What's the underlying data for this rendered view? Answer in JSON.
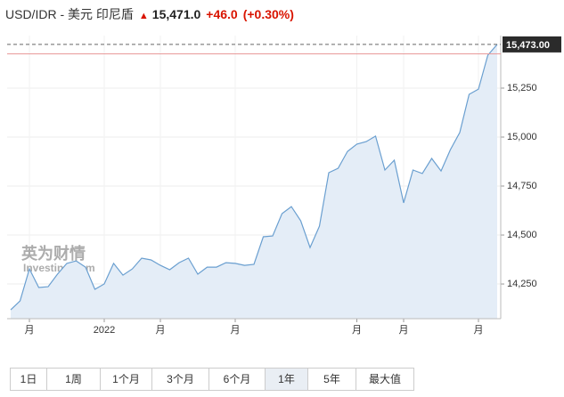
{
  "header": {
    "pair": "USD/IDR - 美元 印尼盾",
    "price": "15,471.0",
    "change": "+46.0",
    "change_pct": "(+0.30%)"
  },
  "chart_data": {
    "type": "area",
    "color": "#6a9fd0",
    "fill": "#e4edf7",
    "watermark": "英为财情",
    "watermark_sub": "Investing.com",
    "categories": [
      null,
      null,
      "月",
      null,
      null,
      null,
      null,
      null,
      null,
      null,
      "2022",
      null,
      null,
      null,
      null,
      null,
      "月",
      null,
      null,
      null,
      null,
      null,
      null,
      null,
      "月",
      null,
      null,
      null,
      null,
      null,
      null,
      null,
      null,
      null,
      null,
      null,
      null,
      "月",
      null,
      null,
      null,
      null,
      "月",
      null,
      null,
      null,
      null,
      null,
      null,
      null,
      "月",
      null,
      null
    ],
    "values": [
      14118,
      14164,
      14327,
      14232,
      14236,
      14300,
      14355,
      14368,
      14336,
      14223,
      14250,
      14355,
      14295,
      14327,
      14382,
      14373,
      14345,
      14323,
      14359,
      14382,
      14300,
      14336,
      14336,
      14359,
      14355,
      14345,
      14350,
      14491,
      14495,
      14609,
      14645,
      14573,
      14436,
      14545,
      14818,
      14841,
      14927,
      14964,
      14977,
      15005,
      14832,
      14882,
      14664,
      14832,
      14814,
      14891,
      14827,
      14936,
      15023,
      15218,
      15245,
      15418,
      15473
    ],
    "ylim": [
      14073,
      15518
    ],
    "yticks": [
      {
        "value": 14250,
        "label": "14,250"
      },
      {
        "value": 14500,
        "label": "14,500"
      },
      {
        "value": 14750,
        "label": "14,750"
      },
      {
        "value": 15000,
        "label": "15,000"
      },
      {
        "value": 15250,
        "label": "15,250"
      }
    ],
    "last_price": {
      "value": 15473,
      "label": "15,473.00"
    },
    "reference_line": 15425,
    "reference_color": "#e89a9a",
    "grid": true
  },
  "range_buttons": {
    "items": [
      "1日",
      "1周",
      "1个月",
      "3个月",
      "6个月",
      "1年",
      "5年",
      "最大值"
    ],
    "selected": 5
  }
}
